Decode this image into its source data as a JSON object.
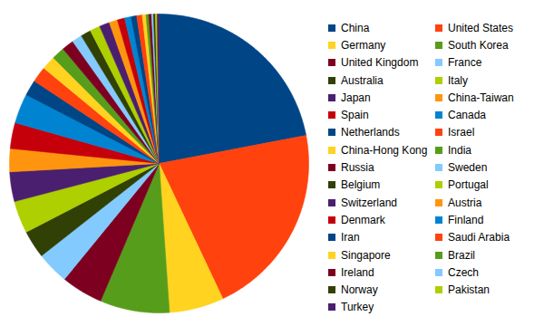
{
  "chart_data": {
    "type": "pie",
    "categories": [
      "China",
      "United States",
      "Germany",
      "South Korea",
      "United Kingdom",
      "France",
      "Australia",
      "Italy",
      "Japan",
      "China-Taiwan",
      "Spain",
      "Canada",
      "Netherlands",
      "Israel",
      "China-Hong Kong",
      "India",
      "Russia",
      "Sweden",
      "Belgium",
      "Portugal",
      "Switzerland",
      "Austria",
      "Denmark",
      "Finland",
      "Iran",
      "Saudi Arabia",
      "Singapore",
      "Brazil",
      "Ireland",
      "Czech",
      "Norway",
      "Pakistan",
      "Turkey"
    ],
    "values": [
      22,
      21,
      5.9,
      7.5,
      4.5,
      3.5,
      3,
      3.5,
      3.2,
      2.5,
      2.8,
      3.2,
      1.7,
      1.7,
      1.5,
      1.4,
      1.3,
      1.1,
      1.1,
      1.1,
      1.1,
      0.9,
      0.8,
      0.7,
      0.6,
      0.6,
      0.4,
      0.3,
      0.3,
      0.2,
      0.2,
      0.2,
      0.2
    ],
    "colors": [
      "#004586",
      "#ff420e",
      "#ffd320",
      "#579d1c",
      "#7e0021",
      "#83caff",
      "#314004",
      "#aecf00",
      "#4b1f6f",
      "#ff950e",
      "#c5000b",
      "#0084d1",
      "#004586",
      "#ff420e",
      "#ffd320",
      "#579d1c",
      "#7e0021",
      "#83caff",
      "#314004",
      "#aecf00",
      "#4b1f6f",
      "#ff950e",
      "#c5000b",
      "#0084d1",
      "#004586",
      "#ff420e",
      "#ffd320",
      "#579d1c",
      "#7e0021",
      "#83caff",
      "#314004",
      "#aecf00",
      "#4b1f6f"
    ],
    "legend": "right"
  }
}
